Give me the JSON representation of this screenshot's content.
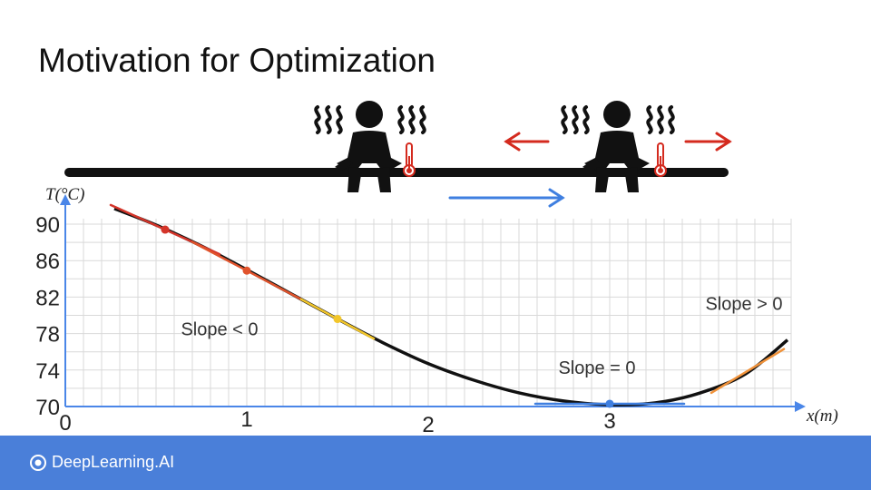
{
  "slide": {
    "title": "Motivation for Optimization"
  },
  "brand": {
    "name": "DeepLearning.AI",
    "logo_icon": "deeplearning-ai-logo-icon"
  },
  "scene": {
    "icons": [
      "person-sitting-icon",
      "heat-waves-icon",
      "thermometer-icon",
      "arrow-left-icon",
      "arrow-right-icon"
    ],
    "colors": {
      "bar": "#111111",
      "heat_arrow": "#d42a1e",
      "move_arrow": "#3f7fe0",
      "axis": "#4a86e8"
    }
  },
  "chart_data": {
    "type": "line",
    "xlabel": "x(m)",
    "ylabel": "T(°C)",
    "xlim": [
      0,
      4
    ],
    "ylim": [
      70,
      90
    ],
    "x_ticks": [
      "0",
      "1",
      "2",
      "3"
    ],
    "y_ticks": [
      "70",
      "74",
      "78",
      "82",
      "86",
      "90"
    ],
    "grid": true,
    "curve": {
      "x": [
        0.27,
        0.5,
        0.75,
        1.0,
        1.25,
        1.5,
        1.75,
        2.0,
        2.25,
        2.5,
        2.75,
        3.0,
        3.25,
        3.5,
        3.75,
        3.98
      ],
      "y": [
        91.7,
        89.9,
        87.6,
        85.0,
        82.3,
        79.6,
        77.0,
        74.7,
        72.9,
        71.5,
        70.6,
        70.2,
        70.4,
        71.5,
        73.6,
        77.3
      ]
    },
    "points": [
      {
        "x": 0.55,
        "y": 89.4,
        "color": "#d4352a",
        "slope": -9.0,
        "half_width": 0.3
      },
      {
        "x": 1.0,
        "y": 84.9,
        "color": "#e0532c",
        "slope": -10.5,
        "half_width": 0.3
      },
      {
        "x": 1.5,
        "y": 79.6,
        "color": "#f2c62b",
        "slope": -10.8,
        "half_width": 0.2
      },
      {
        "x": 3.0,
        "y": 70.3,
        "color": "#3f7fe0",
        "slope": 0,
        "half_width": 0.41
      }
    ],
    "extra_tangents": [
      {
        "x": 3.76,
        "y": 73.9,
        "slope": 12.0,
        "half_width": 0.2,
        "color": "#f0923a"
      }
    ],
    "annotations": [
      {
        "text": "Slope < 0",
        "x": 0.85,
        "y": 77.8
      },
      {
        "text": "Slope = 0",
        "x": 2.93,
        "y": 73.6
      },
      {
        "text": "Slope > 0",
        "x": 3.74,
        "y": 80.6
      }
    ]
  }
}
